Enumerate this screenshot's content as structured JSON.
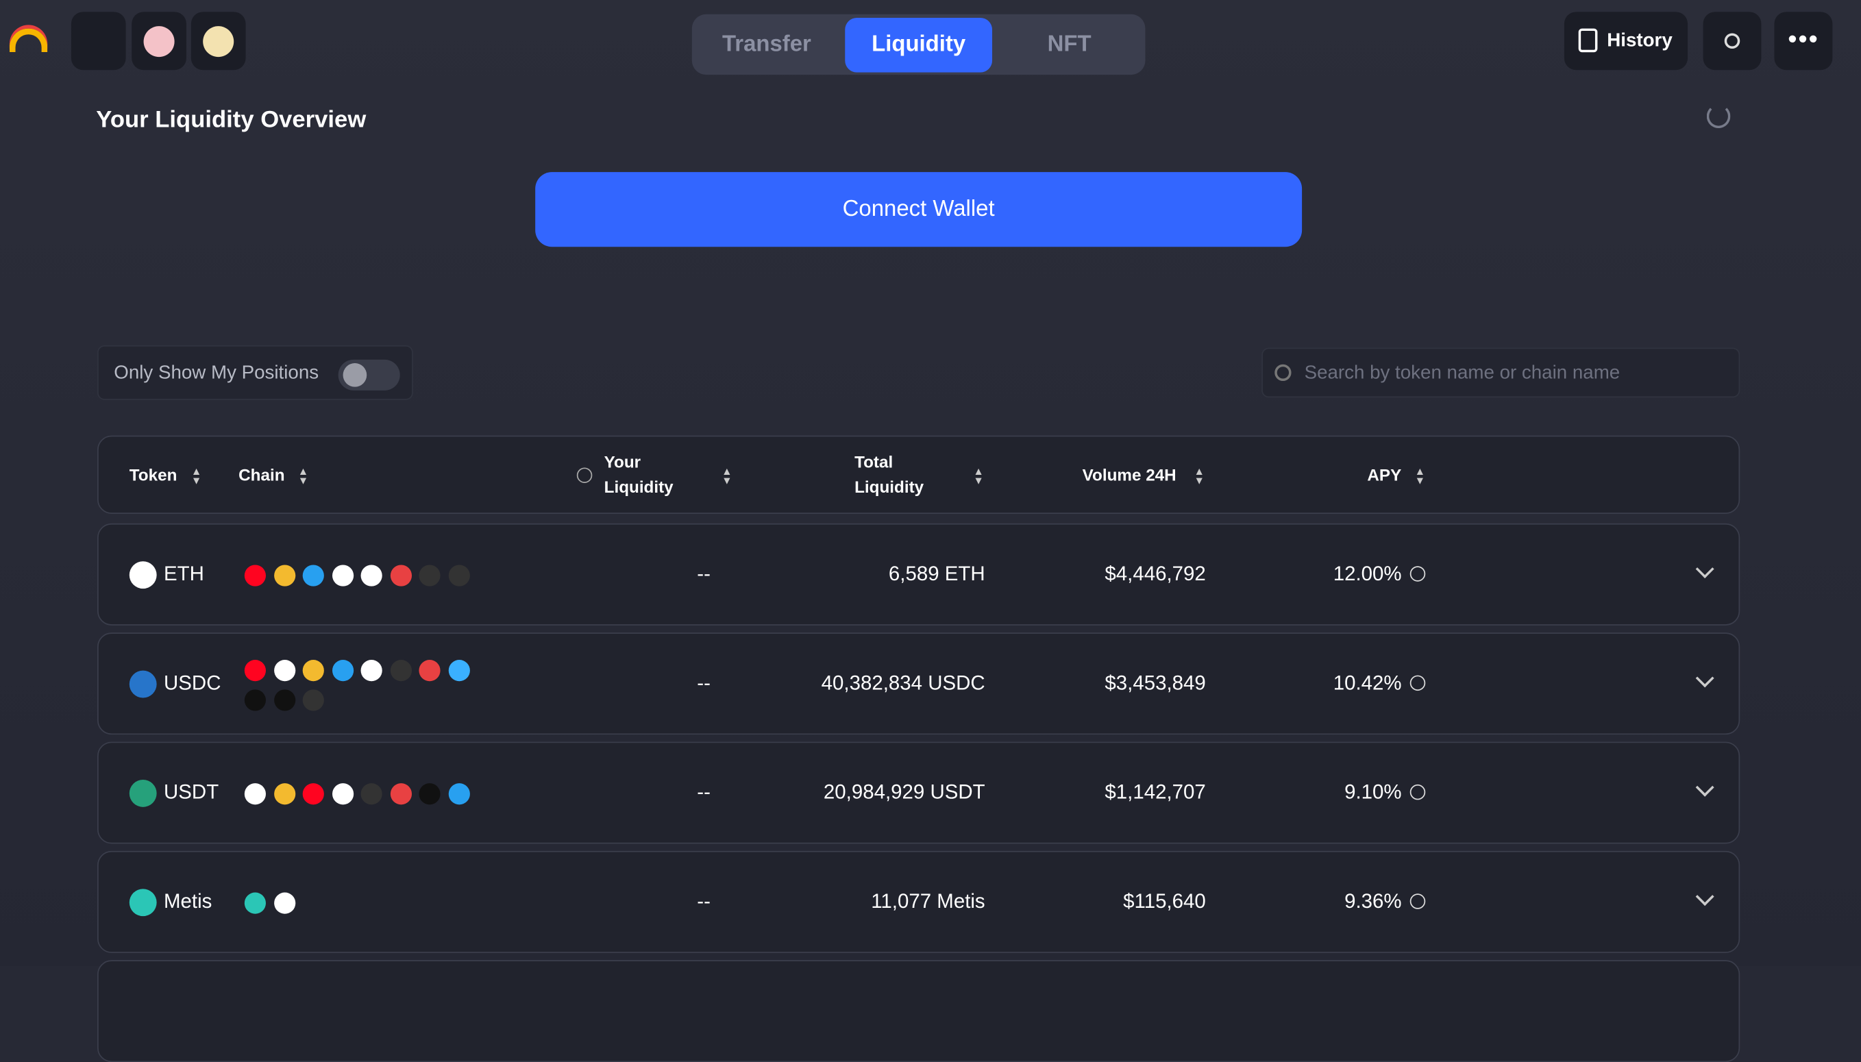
{
  "nav": {
    "tabs": [
      "Transfer",
      "Liquidity",
      "NFT"
    ],
    "active_tab": "Liquidity",
    "history": "History"
  },
  "header": {
    "title": "Your Liquidity Overview"
  },
  "connect_button": "Connect Wallet",
  "filters": {
    "toggle_label": "Only Show My Positions",
    "search_placeholder": "Search by token name or chain name"
  },
  "table": {
    "columns": [
      "Token",
      "Chain",
      "Your Liquidity",
      "Total Liquidity",
      "Volume 24H",
      "APY"
    ],
    "rows": [
      {
        "token": "ETH",
        "your_liquidity": "--",
        "total_liquidity": "6,589 ETH",
        "volume_24h": "$4,446,792",
        "apy": "12.00%"
      },
      {
        "token": "USDC",
        "your_liquidity": "--",
        "total_liquidity": "40,382,834 USDC",
        "volume_24h": "$3,453,849",
        "apy": "10.42%"
      },
      {
        "token": "USDT",
        "your_liquidity": "--",
        "total_liquidity": "20,984,929 USDT",
        "volume_24h": "$1,142,707",
        "apy": "9.10%"
      },
      {
        "token": "Metis",
        "your_liquidity": "--",
        "total_liquidity": "11,077 Metis",
        "volume_24h": "$115,640",
        "apy": "9.36%"
      }
    ]
  }
}
